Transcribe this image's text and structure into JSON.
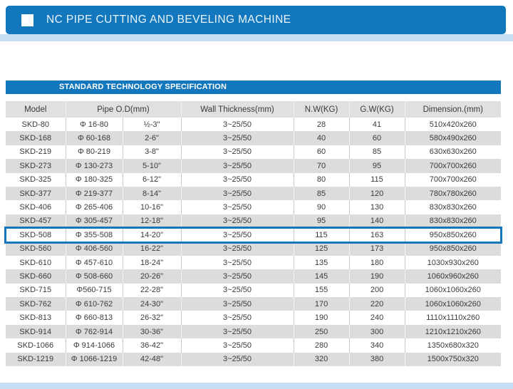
{
  "header": {
    "title": "NC PIPE CUTTING AND BEVELING MACHINE"
  },
  "table": {
    "section_title": "STANDARD TECHNOLOGY SPECIFICATION",
    "columns": {
      "model": "Model",
      "pipe_od": "Pipe O.D(mm)",
      "wall": "Wall Thickness(mm)",
      "nw": "N.W(KG)",
      "gw": "G.W(KG)",
      "dim": "Dimension.(mm)"
    },
    "highlighted_model": "SKD-508",
    "rows": [
      [
        "SKD-80",
        "Φ 16-80",
        "½-3\"",
        "3~25/50",
        "28",
        "41",
        "510x420x260"
      ],
      [
        "SKD-168",
        "Φ 60-168",
        "2-6\"",
        "3~25/50",
        "40",
        "60",
        "580x490x260"
      ],
      [
        "SKD-219",
        "Φ 80-219",
        "3-8\"",
        "3~25/50",
        "60",
        "85",
        "630x630x260"
      ],
      [
        "SKD-273",
        "Φ 130-273",
        "5-10\"",
        "3~25/50",
        "70",
        "95",
        "700x700x260"
      ],
      [
        "SKD-325",
        "Φ 180-325",
        "6-12\"",
        "3~25/50",
        "80",
        "115",
        "700x700x260"
      ],
      [
        "SKD-377",
        "Φ 219-377",
        "8-14\"",
        "3~25/50",
        "85",
        "120",
        "780x780x260"
      ],
      [
        "SKD-406",
        "Φ 265-406",
        "10-16\"",
        "3~25/50",
        "90",
        "130",
        "830x830x260"
      ],
      [
        "SKD-457",
        "Φ 305-457",
        "12-18\"",
        "3~25/50",
        "95",
        "140",
        "830x830x260"
      ],
      [
        "SKD-508",
        "Φ 355-508",
        "14-20\"",
        "3~25/50",
        "115",
        "163",
        "950x850x260"
      ],
      [
        "SKD-560",
        "Φ 406-560",
        "16-22\"",
        "3~25/50",
        "125",
        "173",
        "950x850x260"
      ],
      [
        "SKD-610",
        "Φ 457-610",
        "18-24\"",
        "3~25/50",
        "135",
        "180",
        "1030x930x260"
      ],
      [
        "SKD-660",
        "Φ 508-660",
        "20-26\"",
        "3~25/50",
        "145",
        "190",
        "1060x960x260"
      ],
      [
        "SKD-715",
        "Φ560-715",
        "22-28\"",
        "3~25/50",
        "155",
        "200",
        "1060x1060x260"
      ],
      [
        "SKD-762",
        "Φ 610-762",
        "24-30\"",
        "3~25/50",
        "170",
        "220",
        "1060x1060x260"
      ],
      [
        "SKD-813",
        "Φ 660-813",
        "26-32\"",
        "3~25/50",
        "190",
        "240",
        "1110x1110x260"
      ],
      [
        "SKD-914",
        "Φ 762-914",
        "30-36\"",
        "3~25/50",
        "250",
        "300",
        "1210x1210x260"
      ],
      [
        "SKD-1066",
        "Φ 914-1066",
        "36-42\"",
        "3~25/50",
        "280",
        "340",
        "1350x680x320"
      ],
      [
        "SKD-1219",
        "Φ 1066-1219",
        "42-48\"",
        "3~25/50",
        "320",
        "380",
        "1500x750x320"
      ]
    ]
  },
  "colors": {
    "accent_blue": "#1377bd",
    "light_blue": "#c5def3",
    "row_alt_gray": "#dcdcdc",
    "header_gray": "#e0e0e0"
  }
}
